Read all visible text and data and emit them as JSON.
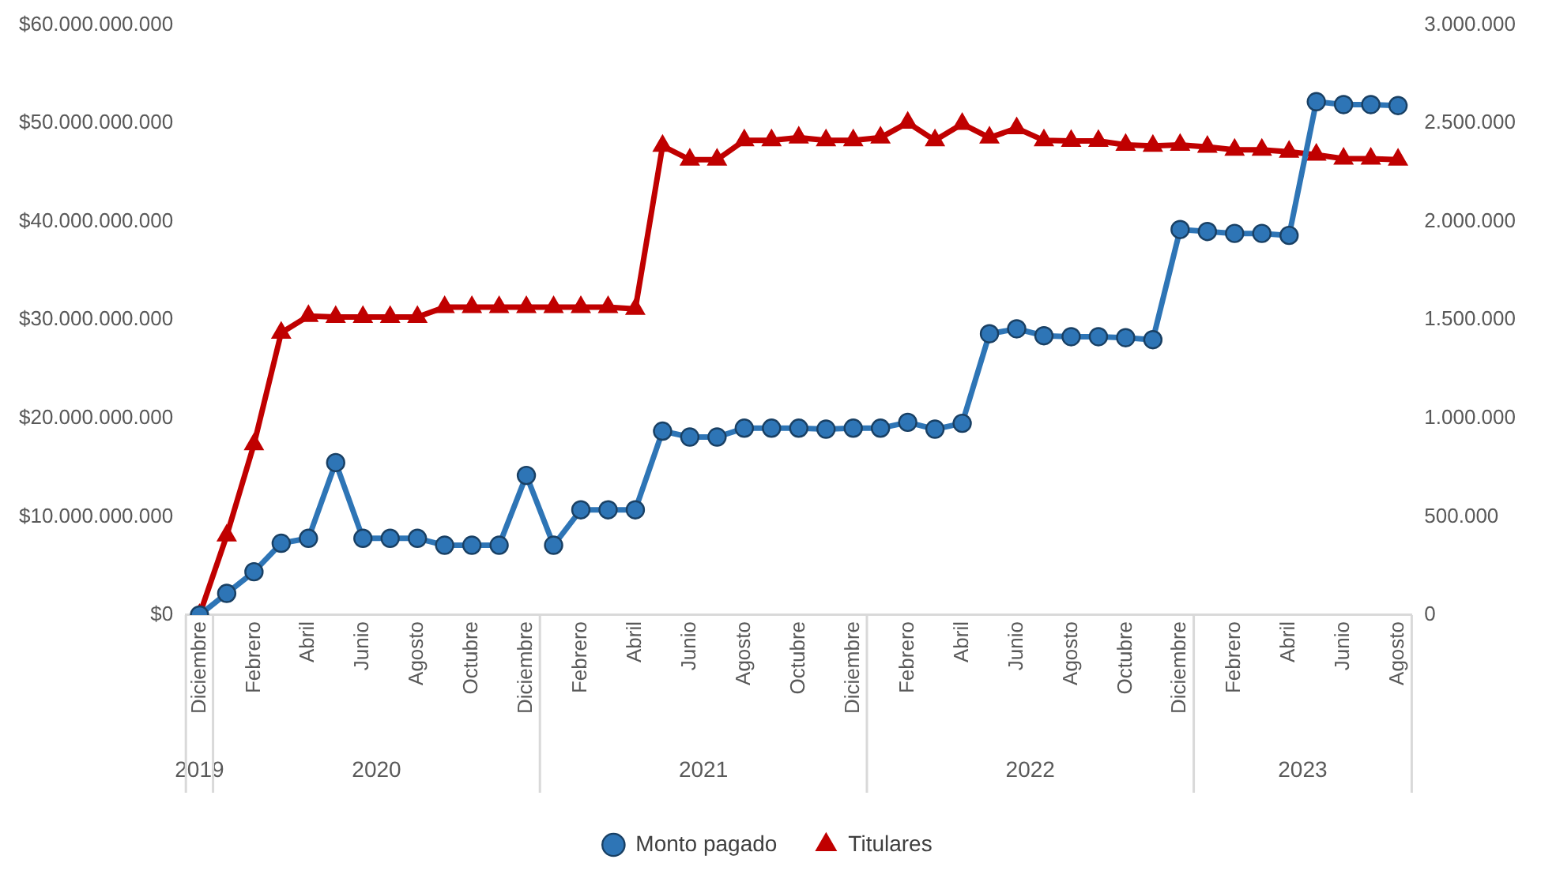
{
  "chart_data": {
    "type": "line",
    "categories": [
      "Diciembre",
      null,
      "Febrero",
      null,
      "Abril",
      null,
      "Junio",
      null,
      "Agosto",
      null,
      "Octubre",
      null,
      "Diciembre",
      null,
      "Febrero",
      null,
      "Abril",
      null,
      "Junio",
      null,
      "Agosto",
      null,
      "Octubre",
      null,
      "Diciembre",
      null,
      "Febrero",
      null,
      "Abril",
      null,
      "Junio",
      null,
      "Agosto",
      null,
      "Octubre",
      null,
      "Diciembre",
      null,
      "Febrero",
      null,
      "Abril",
      null,
      "Junio",
      null,
      "Agosto"
    ],
    "series": [
      {
        "name": "Monto pagado",
        "color": "#2e75b6",
        "marker": "circle",
        "values": [
          0,
          2200000000,
          4400000000,
          7300000000,
          7800000000,
          15500000000,
          7800000000,
          7800000000,
          7800000000,
          7100000000,
          7100000000,
          7100000000,
          14200000000,
          7100000000,
          10700000000,
          10700000000,
          10700000000,
          18700000000,
          18100000000,
          18100000000,
          19000000000,
          19000000000,
          19000000000,
          18900000000,
          19000000000,
          19000000000,
          19600000000,
          18900000000,
          19500000000,
          28600000000,
          29100000000,
          28400000000,
          28300000000,
          28300000000,
          28200000000,
          28000000000,
          39200000000,
          39000000000,
          38800000000,
          38800000000,
          38600000000,
          52200000000,
          51900000000,
          51900000000,
          51800000000
        ]
      },
      {
        "name": "Titulares",
        "color": "#c00000",
        "marker": "triangle",
        "axis": "y2",
        "values": [
          0,
          404000,
          868000,
          1435000,
          1520000,
          1515000,
          1515000,
          1515000,
          1515000,
          1565000,
          1565000,
          1565000,
          1565000,
          1565000,
          1565000,
          1565000,
          1556000,
          2385000,
          2315000,
          2315000,
          2413000,
          2413000,
          2427000,
          2413000,
          2413000,
          2427000,
          2503000,
          2413000,
          2497000,
          2427000,
          2475000,
          2413000,
          2410000,
          2410000,
          2390000,
          2385000,
          2390000,
          2380000,
          2365000,
          2365000,
          2355000,
          2340000,
          2320000,
          2320000,
          2315000
        ]
      }
    ],
    "ylim": [
      0,
      60000000000
    ],
    "yticks": [
      {
        "value": 0,
        "label": "$0"
      },
      {
        "value": 10000000000,
        "label": "$10.000.000.000"
      },
      {
        "value": 20000000000,
        "label": "$20.000.000.000"
      },
      {
        "value": 30000000000,
        "label": "$30.000.000.000"
      },
      {
        "value": 40000000000,
        "label": "$40.000.000.000"
      },
      {
        "value": 50000000000,
        "label": "$50.000.000.000"
      },
      {
        "value": 60000000000,
        "label": "$60.000.000.000"
      }
    ],
    "y2lim": [
      0,
      3000000
    ],
    "y2ticks": [
      0,
      {
        "value": 500000,
        "label": "500.000"
      },
      {
        "value": 1000000,
        "label": "1.000.000"
      },
      {
        "value": 1500000,
        "label": "1.500.000"
      },
      {
        "value": 2000000,
        "label": "2.000.000"
      },
      {
        "value": 2500000,
        "label": "2.500.000"
      },
      {
        "value": 3000000,
        "label": "3.000.000"
      }
    ],
    "annotations": [
      "2019",
      "2020",
      "2021",
      "2022",
      "2023"
    ],
    "grid": false,
    "legend": "bottom"
  }
}
